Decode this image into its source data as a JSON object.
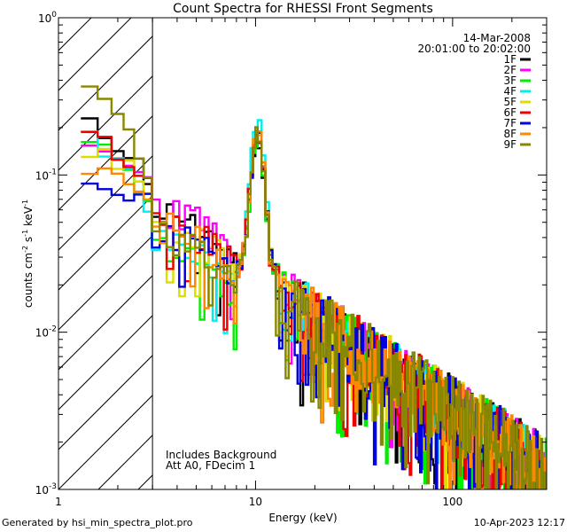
{
  "chart_data": {
    "type": "line",
    "title": "Count Spectra for RHESSI Front Segments",
    "xlabel": "Energy (keV)",
    "ylabel_parts": [
      "counts cm",
      "-2",
      " s",
      "-1",
      " keV",
      "-1"
    ],
    "xscale": "log",
    "yscale": "log",
    "xlim": [
      1,
      300
    ],
    "ylim": [
      0.001,
      1
    ],
    "xtick_labels": [
      {
        "value": 1,
        "label": "1"
      },
      {
        "value": 10,
        "label": "10"
      },
      {
        "value": 100,
        "label": "100"
      }
    ],
    "ytick_labels": [
      {
        "value": 1,
        "mantissa": "10",
        "exp": "0"
      },
      {
        "value": 0.1,
        "mantissa": "10",
        "exp": "-1"
      },
      {
        "value": 0.01,
        "mantissa": "10",
        "exp": "-2"
      },
      {
        "value": 0.001,
        "mantissa": "10",
        "exp": "-3"
      }
    ],
    "hatched_region_x": [
      1,
      3
    ],
    "legend_header": [
      "14-Mar-2008",
      "20:01:00 to 20:02:00"
    ],
    "annotations": [
      "Includes Background",
      "Att A0, FDecim 1"
    ],
    "legend_position": "top-right",
    "series": [
      {
        "name": "1F",
        "color": "#000000",
        "start": 0.215,
        "low": 0.06,
        "peak": 0.14,
        "seed": 11
      },
      {
        "name": "2F",
        "color": "#ff00ff",
        "start": 0.14,
        "low": 0.065,
        "peak": 0.16,
        "seed": 23
      },
      {
        "name": "3F",
        "color": "#00ee00",
        "start": 0.165,
        "low": 0.035,
        "peak": 0.15,
        "seed": 37
      },
      {
        "name": "4F",
        "color": "#00eeee",
        "start": 0.175,
        "low": 0.04,
        "peak": 0.21,
        "seed": 41
      },
      {
        "name": "5F",
        "color": "#dddd00",
        "start": 0.16,
        "low": 0.05,
        "peak": 0.17,
        "seed": 53
      },
      {
        "name": "6F",
        "color": "#ee0000",
        "start": 0.185,
        "low": 0.055,
        "peak": 0.17,
        "seed": 67
      },
      {
        "name": "7F",
        "color": "#0000dd",
        "start": 0.105,
        "low": 0.045,
        "peak": 0.16,
        "seed": 71
      },
      {
        "name": "8F",
        "color": "#ff8800",
        "start": 0.12,
        "low": 0.05,
        "peak": 0.17,
        "seed": 83
      },
      {
        "name": "9F",
        "color": "#888800",
        "start": 0.36,
        "low": 0.045,
        "peak": 0.16,
        "seed": 97
      }
    ]
  },
  "footer": {
    "left": "Generated by hsi_min_spectra_plot.pro",
    "right": "10-Apr-2023 12:17"
  }
}
